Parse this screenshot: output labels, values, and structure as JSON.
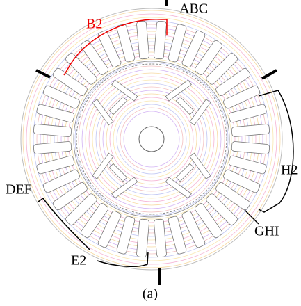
{
  "labels": {
    "abc": "ABC",
    "b2": "B2",
    "def": "DEF",
    "e2": "E2",
    "ghi": "GHI",
    "h2": "H2"
  },
  "caption": "(a)"
}
